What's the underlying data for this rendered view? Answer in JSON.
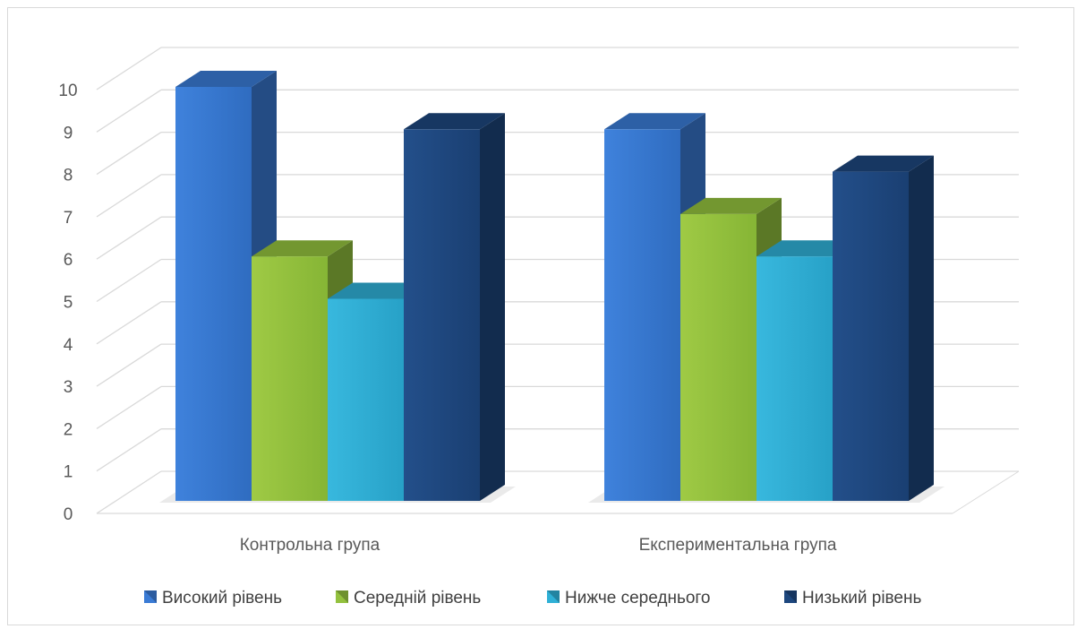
{
  "chart_data": {
    "type": "bar",
    "categories": [
      "Контрольна група",
      "Експериментальна група"
    ],
    "series": [
      {
        "name": "Високий рівень",
        "values": [
          10,
          9
        ],
        "color": "#3a7bd5"
      },
      {
        "name": "Середній рівень",
        "values": [
          6,
          7
        ],
        "color": "#93c13e"
      },
      {
        "name": "Нижче середнього",
        "values": [
          5,
          6
        ],
        "color": "#2fb0d6"
      },
      {
        "name": "Низький рівень",
        "values": [
          9,
          8
        ],
        "color": "#1d477e"
      }
    ],
    "ylim": [
      0,
      10
    ],
    "yticks": [
      0,
      1,
      2,
      3,
      4,
      5,
      6,
      7,
      8,
      9,
      10
    ],
    "grid": true,
    "legend_position": "bottom",
    "style": "3d-clustered-column"
  }
}
